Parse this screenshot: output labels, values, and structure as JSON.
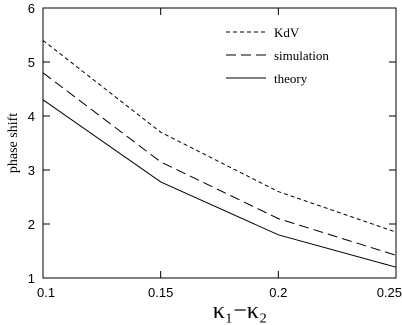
{
  "chart_data": {
    "type": "line",
    "xlabel": "κ₁−κ₂",
    "ylabel": "phase shift",
    "xlim": [
      0.1,
      0.25
    ],
    "ylim": [
      1,
      6
    ],
    "xticks": [
      0.1,
      0.15,
      0.2,
      0.25
    ],
    "yticks": [
      1,
      2,
      3,
      4,
      5,
      6
    ],
    "grid": false,
    "legend_position": "top-right",
    "series": [
      {
        "name": "KdV",
        "style": "dotted",
        "x": [
          0.1,
          0.15,
          0.2,
          0.25
        ],
        "y": [
          5.4,
          3.7,
          2.6,
          1.85
        ]
      },
      {
        "name": "simulation",
        "style": "dashed",
        "x": [
          0.1,
          0.15,
          0.2,
          0.25
        ],
        "y": [
          4.8,
          3.15,
          2.1,
          1.42
        ]
      },
      {
        "name": "theory",
        "style": "solid",
        "x": [
          0.1,
          0.15,
          0.2,
          0.25
        ],
        "y": [
          4.3,
          2.78,
          1.8,
          1.2
        ]
      }
    ]
  }
}
